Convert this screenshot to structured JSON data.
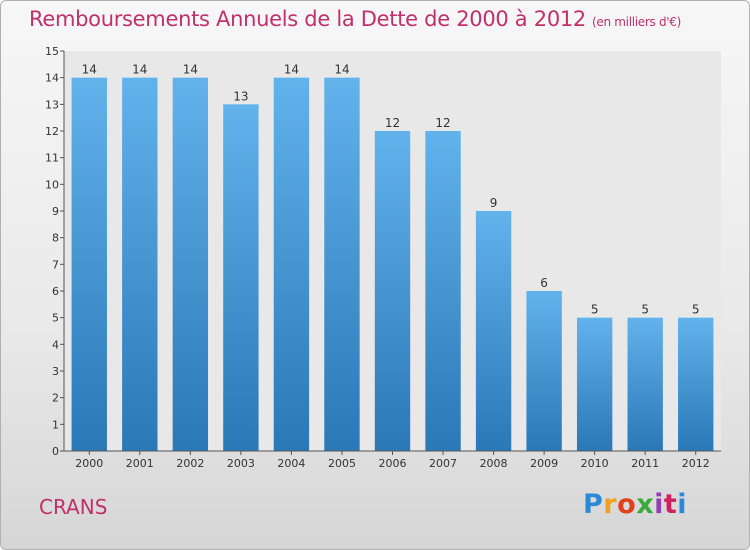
{
  "header": {
    "title": "Remboursements Annuels de la Dette de 2000 à 2012",
    "unit": "(en milliers d'€)"
  },
  "footer": {
    "town": "CRANS",
    "logo_letters": [
      "P",
      "r",
      "o",
      "x",
      "i",
      "t",
      "i"
    ]
  },
  "colors": {
    "title": "#c0306a",
    "bar_top": "#62b2ec",
    "bar_bottom": "#2a78b6"
  },
  "chart_data": {
    "type": "bar",
    "title": "Remboursements Annuels de la Dette de 2000 à 2012",
    "xlabel": "",
    "ylabel": "",
    "categories": [
      "2000",
      "2001",
      "2002",
      "2003",
      "2004",
      "2005",
      "2006",
      "2007",
      "2008",
      "2009",
      "2010",
      "2011",
      "2012"
    ],
    "values": [
      14,
      14,
      14,
      13,
      14,
      14,
      12,
      12,
      9,
      6,
      5,
      5,
      5
    ],
    "ylim": [
      0,
      15
    ],
    "yticks": [
      "0",
      "1",
      "2",
      "3",
      "4",
      "5",
      "6",
      "7",
      "8",
      "9",
      "10",
      "11",
      "12",
      "13",
      "14",
      "15"
    ],
    "grid": false,
    "legend": "none"
  }
}
